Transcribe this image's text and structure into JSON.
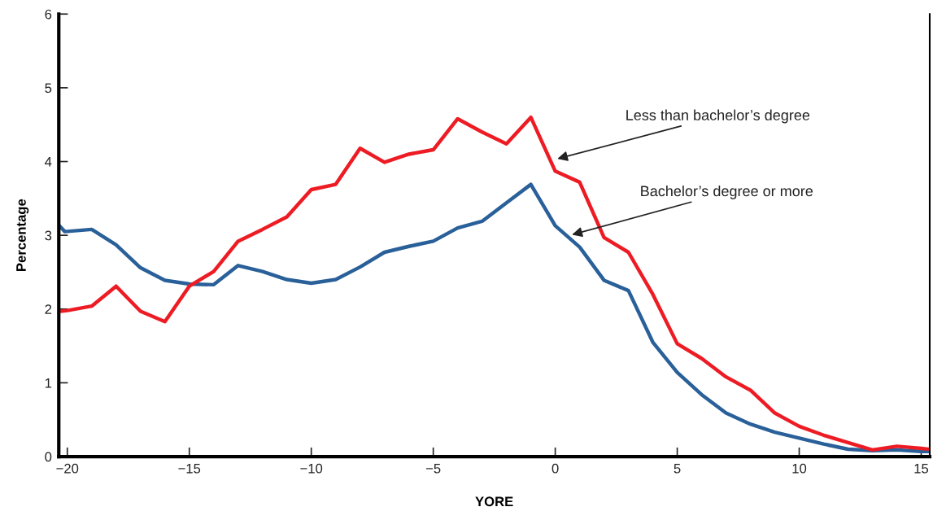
{
  "chart_data": {
    "type": "line",
    "xlabel": "YORE",
    "ylabel": "Percentage",
    "xlim": [
      -20.35,
      15.35
    ],
    "ylim": [
      0,
      6
    ],
    "xticks": [
      {
        "value": -20,
        "label": "−20"
      },
      {
        "value": -15,
        "label": "−15"
      },
      {
        "value": -10,
        "label": "−10"
      },
      {
        "value": -5,
        "label": "−5"
      },
      0,
      5,
      10,
      15
    ],
    "yticks": [
      0,
      1,
      2,
      3,
      4,
      5,
      6
    ],
    "grid": false,
    "marker": "none",
    "line_style": "solid",
    "series": [
      {
        "color": "#2a6099",
        "x": [
          -20.3,
          -20.1,
          -19,
          -18,
          -17,
          -16,
          -15,
          -14,
          -13,
          -12,
          -11,
          -10,
          -9,
          -8,
          -7,
          -6,
          -5,
          -4,
          -3,
          -2,
          -1,
          0,
          1,
          2,
          3,
          4,
          5,
          6,
          7,
          8,
          9,
          10,
          11,
          12,
          13,
          14,
          15,
          15.3
        ],
        "values": [
          3.12,
          3.05,
          3.08,
          2.87,
          2.56,
          2.39,
          2.34,
          2.33,
          2.59,
          2.51,
          2.4,
          2.35,
          2.4,
          2.57,
          2.77,
          2.85,
          2.92,
          3.1,
          3.19,
          3.44,
          3.69,
          3.13,
          2.84,
          2.39,
          2.25,
          1.55,
          1.14,
          0.84,
          0.59,
          0.44,
          0.33,
          0.25,
          0.17,
          0.1,
          0.08,
          0.09,
          0.07,
          0.07
        ]
      },
      {
        "color": "#ed1c24",
        "x": [
          -20.3,
          -20,
          -19,
          -18,
          -17,
          -16,
          -15,
          -14,
          -13,
          -12,
          -11,
          -10,
          -9,
          -8,
          -7,
          -6,
          -5,
          -4,
          -3,
          -2,
          -1,
          0,
          1,
          2,
          3,
          4,
          5,
          6,
          7,
          8,
          9,
          10,
          11,
          12,
          13,
          14,
          15,
          15.3
        ],
        "values": [
          1.97,
          1.98,
          2.04,
          2.31,
          1.97,
          1.83,
          2.31,
          2.51,
          2.92,
          3.08,
          3.25,
          3.62,
          3.69,
          4.18,
          3.99,
          4.1,
          4.16,
          4.58,
          4.4,
          4.24,
          4.6,
          3.87,
          3.72,
          2.97,
          2.77,
          2.2,
          1.53,
          1.33,
          1.08,
          0.9,
          0.59,
          0.41,
          0.29,
          0.19,
          0.09,
          0.14,
          0.11,
          0.1
        ]
      }
    ],
    "annotations": [
      {
        "text": "Less than bachelor’s degree",
        "x": 0,
        "y": 4.03
      },
      {
        "text": "Bachelor’s degree or more",
        "x": 0.6,
        "y": 3.0
      }
    ]
  }
}
